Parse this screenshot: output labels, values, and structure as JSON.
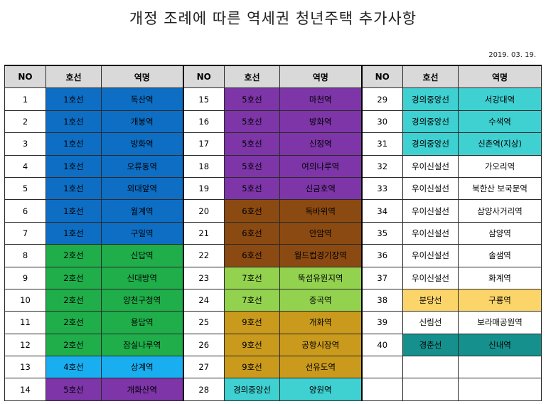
{
  "title": "개정 조례에 따른 역세권 청년주택 추가사항",
  "date": "2019. 03. 19.",
  "headers": [
    "NO",
    "호선",
    "역명"
  ],
  "line_colors": {
    "1호선": "#0d6ec4",
    "2호선": "#1fae4a",
    "4호선": "#19aef0",
    "5호선": "#7d35a8",
    "6호선": "#8b4a11",
    "7호선": "#93d24f",
    "9호선": "#c99a1c",
    "경의중앙선": "#3fd0d1",
    "분당선": "#fcd56a",
    "경춘선": "#16908c"
  },
  "columns": [
    [
      {
        "no": "1",
        "line": "1호선",
        "station": "독산역"
      },
      {
        "no": "2",
        "line": "1호선",
        "station": "개봉역"
      },
      {
        "no": "3",
        "line": "1호선",
        "station": "방화역"
      },
      {
        "no": "4",
        "line": "1호선",
        "station": "오류동역"
      },
      {
        "no": "5",
        "line": "1호선",
        "station": "외대앞역"
      },
      {
        "no": "6",
        "line": "1호선",
        "station": "월계역"
      },
      {
        "no": "7",
        "line": "1호선",
        "station": "구일역"
      },
      {
        "no": "8",
        "line": "2호선",
        "station": "신답역"
      },
      {
        "no": "9",
        "line": "2호선",
        "station": "신대방역"
      },
      {
        "no": "10",
        "line": "2호선",
        "station": "양천구청역"
      },
      {
        "no": "11",
        "line": "2호선",
        "station": "용답역"
      },
      {
        "no": "12",
        "line": "2호선",
        "station": "잠실나루역"
      },
      {
        "no": "13",
        "line": "4호선",
        "station": "상계역"
      },
      {
        "no": "14",
        "line": "5호선",
        "station": "개화산역"
      }
    ],
    [
      {
        "no": "15",
        "line": "5호선",
        "station": "마천역"
      },
      {
        "no": "16",
        "line": "5호선",
        "station": "방화역"
      },
      {
        "no": "17",
        "line": "5호선",
        "station": "신정역"
      },
      {
        "no": "18",
        "line": "5호선",
        "station": "여의나루역"
      },
      {
        "no": "19",
        "line": "5호선",
        "station": "신금호역"
      },
      {
        "no": "20",
        "line": "6호선",
        "station": "독바위역"
      },
      {
        "no": "21",
        "line": "6호선",
        "station": "안암역"
      },
      {
        "no": "22",
        "line": "6호선",
        "station": "월드컵경기장역"
      },
      {
        "no": "23",
        "line": "7호선",
        "station": "뚝섬유원지역"
      },
      {
        "no": "24",
        "line": "7호선",
        "station": "중곡역"
      },
      {
        "no": "25",
        "line": "9호선",
        "station": "개화역"
      },
      {
        "no": "26",
        "line": "9호선",
        "station": "공항시장역"
      },
      {
        "no": "27",
        "line": "9호선",
        "station": "선유도역"
      },
      {
        "no": "28",
        "line": "경의중앙선",
        "station": "양원역"
      }
    ],
    [
      {
        "no": "29",
        "line": "경의중앙선",
        "station": "서강대역"
      },
      {
        "no": "30",
        "line": "경의중앙선",
        "station": "수색역"
      },
      {
        "no": "31",
        "line": "경의중앙선",
        "station": "신촌역(지상)"
      },
      {
        "no": "32",
        "line": "우이신설선",
        "station": "가오리역"
      },
      {
        "no": "33",
        "line": "우이신설선",
        "station": "북한산 보국문역"
      },
      {
        "no": "34",
        "line": "우이신설선",
        "station": "삼양사거리역"
      },
      {
        "no": "35",
        "line": "우이신설선",
        "station": "삼양역"
      },
      {
        "no": "36",
        "line": "우이신설선",
        "station": "솔샘역"
      },
      {
        "no": "37",
        "line": "우이신설선",
        "station": "화계역"
      },
      {
        "no": "38",
        "line": "분당선",
        "station": "구룡역"
      },
      {
        "no": "39",
        "line": "신림선",
        "station": "보라매공원역"
      },
      {
        "no": "40",
        "line": "경춘선",
        "station": "신내역"
      },
      {
        "no": "",
        "line": "",
        "station": ""
      },
      {
        "no": "",
        "line": "",
        "station": ""
      }
    ]
  ]
}
